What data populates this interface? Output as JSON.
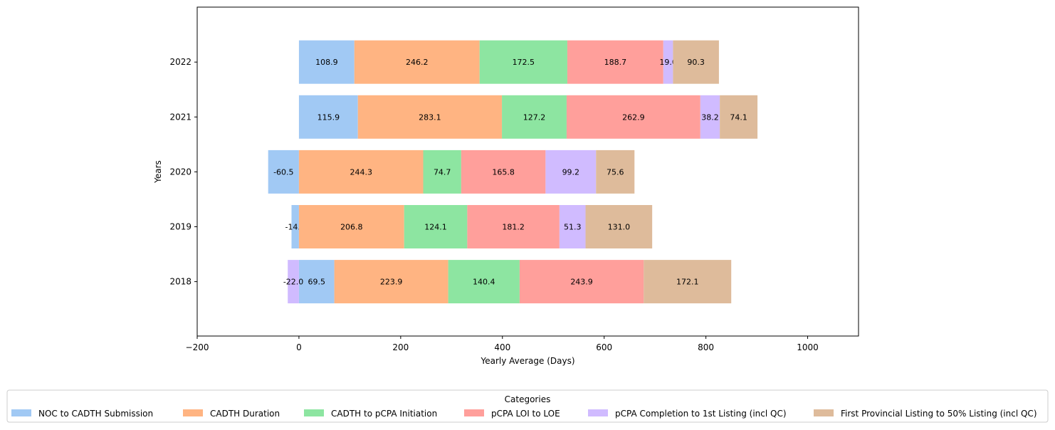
{
  "chart_data": {
    "type": "bar",
    "orientation": "horizontal",
    "stacked": true,
    "title": "",
    "xlabel": "Yearly Average (Days)",
    "ylabel": "Years",
    "xlim": [
      -200,
      1100
    ],
    "xticks": [
      -200,
      0,
      200,
      400,
      600,
      800,
      1000
    ],
    "categories": [
      "2018",
      "2019",
      "2020",
      "2021",
      "2022"
    ],
    "series": [
      {
        "name": "NOC to CADTH Submission",
        "color": "#a1c9f4",
        "values": [
          69.5,
          -14.6,
          -60.5,
          115.9,
          108.9
        ]
      },
      {
        "name": "CADTH Duration",
        "color": "#ffb482",
        "values": [
          223.9,
          206.8,
          244.3,
          283.1,
          246.2
        ]
      },
      {
        "name": "CADTH to pCPA Initiation",
        "color": "#8de5a1",
        "values": [
          140.4,
          124.1,
          74.7,
          127.2,
          172.5
        ]
      },
      {
        "name": "pCPA LOI to LOE",
        "color": "#ff9f9b",
        "values": [
          243.9,
          181.2,
          165.8,
          262.9,
          188.7
        ]
      },
      {
        "name": "pCPA Completion to 1st Listing (incl QC)",
        "color": "#d0bbff",
        "values": [
          -22.0,
          51.3,
          99.2,
          38.2,
          19.0
        ]
      },
      {
        "name": "First Provincial Listing to 50% Listing (incl QC)",
        "color": "#debb9b",
        "values": [
          172.1,
          131.0,
          75.6,
          74.1,
          90.3
        ]
      }
    ],
    "legend": {
      "title": "Categories",
      "placement": "bottom-center"
    },
    "grid": false
  }
}
